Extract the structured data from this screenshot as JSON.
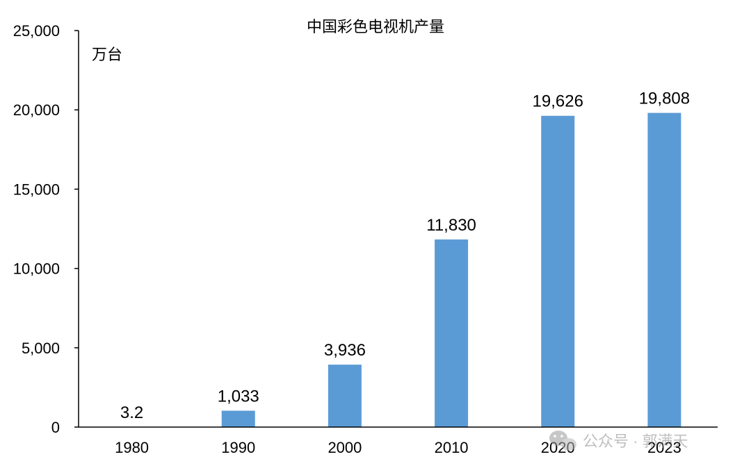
{
  "chart_data": {
    "type": "bar",
    "title": "中国彩色电视机产量",
    "unit_label": "万台",
    "categories": [
      "1980",
      "1990",
      "2000",
      "2010",
      "2020",
      "2023"
    ],
    "values": [
      3.2,
      1033,
      3936,
      11830,
      19626,
      19808
    ],
    "data_labels": [
      "3.2",
      "1,033",
      "3,936",
      "11,830",
      "19,626",
      "19,808"
    ],
    "ylim": [
      0,
      25000
    ],
    "yticks": [
      0,
      5000,
      10000,
      15000,
      20000,
      25000
    ],
    "ytick_labels": [
      "0",
      "5,000",
      "10,000",
      "15,000",
      "20,000",
      "25,000"
    ],
    "grid": false,
    "bar_color": "#5B9BD5"
  },
  "watermark": {
    "text": "公众号 · 郭满天"
  }
}
